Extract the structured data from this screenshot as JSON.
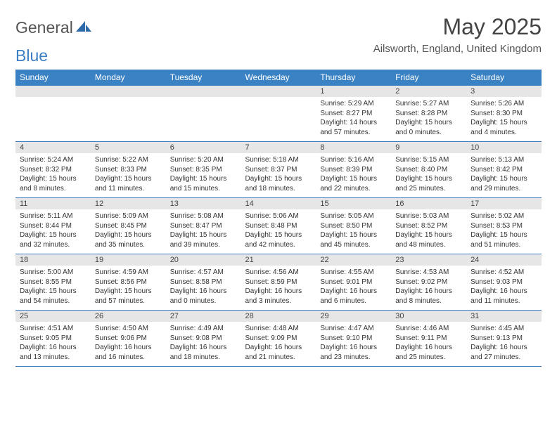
{
  "logo": {
    "text1": "General",
    "text2": "Blue"
  },
  "title": "May 2025",
  "location": "Ailsworth, England, United Kingdom",
  "colors": {
    "header_bg": "#3b82c4",
    "daynum_bg": "#e6e6e6",
    "border": "#3b7fc4",
    "text": "#333333"
  },
  "dayNames": [
    "Sunday",
    "Monday",
    "Tuesday",
    "Wednesday",
    "Thursday",
    "Friday",
    "Saturday"
  ],
  "weeks": [
    [
      {
        "n": "",
        "sunrise": "",
        "sunset": "",
        "daylight": ""
      },
      {
        "n": "",
        "sunrise": "",
        "sunset": "",
        "daylight": ""
      },
      {
        "n": "",
        "sunrise": "",
        "sunset": "",
        "daylight": ""
      },
      {
        "n": "",
        "sunrise": "",
        "sunset": "",
        "daylight": ""
      },
      {
        "n": "1",
        "sunrise": "Sunrise: 5:29 AM",
        "sunset": "Sunset: 8:27 PM",
        "daylight": "Daylight: 14 hours and 57 minutes."
      },
      {
        "n": "2",
        "sunrise": "Sunrise: 5:27 AM",
        "sunset": "Sunset: 8:28 PM",
        "daylight": "Daylight: 15 hours and 0 minutes."
      },
      {
        "n": "3",
        "sunrise": "Sunrise: 5:26 AM",
        "sunset": "Sunset: 8:30 PM",
        "daylight": "Daylight: 15 hours and 4 minutes."
      }
    ],
    [
      {
        "n": "4",
        "sunrise": "Sunrise: 5:24 AM",
        "sunset": "Sunset: 8:32 PM",
        "daylight": "Daylight: 15 hours and 8 minutes."
      },
      {
        "n": "5",
        "sunrise": "Sunrise: 5:22 AM",
        "sunset": "Sunset: 8:33 PM",
        "daylight": "Daylight: 15 hours and 11 minutes."
      },
      {
        "n": "6",
        "sunrise": "Sunrise: 5:20 AM",
        "sunset": "Sunset: 8:35 PM",
        "daylight": "Daylight: 15 hours and 15 minutes."
      },
      {
        "n": "7",
        "sunrise": "Sunrise: 5:18 AM",
        "sunset": "Sunset: 8:37 PM",
        "daylight": "Daylight: 15 hours and 18 minutes."
      },
      {
        "n": "8",
        "sunrise": "Sunrise: 5:16 AM",
        "sunset": "Sunset: 8:39 PM",
        "daylight": "Daylight: 15 hours and 22 minutes."
      },
      {
        "n": "9",
        "sunrise": "Sunrise: 5:15 AM",
        "sunset": "Sunset: 8:40 PM",
        "daylight": "Daylight: 15 hours and 25 minutes."
      },
      {
        "n": "10",
        "sunrise": "Sunrise: 5:13 AM",
        "sunset": "Sunset: 8:42 PM",
        "daylight": "Daylight: 15 hours and 29 minutes."
      }
    ],
    [
      {
        "n": "11",
        "sunrise": "Sunrise: 5:11 AM",
        "sunset": "Sunset: 8:44 PM",
        "daylight": "Daylight: 15 hours and 32 minutes."
      },
      {
        "n": "12",
        "sunrise": "Sunrise: 5:09 AM",
        "sunset": "Sunset: 8:45 PM",
        "daylight": "Daylight: 15 hours and 35 minutes."
      },
      {
        "n": "13",
        "sunrise": "Sunrise: 5:08 AM",
        "sunset": "Sunset: 8:47 PM",
        "daylight": "Daylight: 15 hours and 39 minutes."
      },
      {
        "n": "14",
        "sunrise": "Sunrise: 5:06 AM",
        "sunset": "Sunset: 8:48 PM",
        "daylight": "Daylight: 15 hours and 42 minutes."
      },
      {
        "n": "15",
        "sunrise": "Sunrise: 5:05 AM",
        "sunset": "Sunset: 8:50 PM",
        "daylight": "Daylight: 15 hours and 45 minutes."
      },
      {
        "n": "16",
        "sunrise": "Sunrise: 5:03 AM",
        "sunset": "Sunset: 8:52 PM",
        "daylight": "Daylight: 15 hours and 48 minutes."
      },
      {
        "n": "17",
        "sunrise": "Sunrise: 5:02 AM",
        "sunset": "Sunset: 8:53 PM",
        "daylight": "Daylight: 15 hours and 51 minutes."
      }
    ],
    [
      {
        "n": "18",
        "sunrise": "Sunrise: 5:00 AM",
        "sunset": "Sunset: 8:55 PM",
        "daylight": "Daylight: 15 hours and 54 minutes."
      },
      {
        "n": "19",
        "sunrise": "Sunrise: 4:59 AM",
        "sunset": "Sunset: 8:56 PM",
        "daylight": "Daylight: 15 hours and 57 minutes."
      },
      {
        "n": "20",
        "sunrise": "Sunrise: 4:57 AM",
        "sunset": "Sunset: 8:58 PM",
        "daylight": "Daylight: 16 hours and 0 minutes."
      },
      {
        "n": "21",
        "sunrise": "Sunrise: 4:56 AM",
        "sunset": "Sunset: 8:59 PM",
        "daylight": "Daylight: 16 hours and 3 minutes."
      },
      {
        "n": "22",
        "sunrise": "Sunrise: 4:55 AM",
        "sunset": "Sunset: 9:01 PM",
        "daylight": "Daylight: 16 hours and 6 minutes."
      },
      {
        "n": "23",
        "sunrise": "Sunrise: 4:53 AM",
        "sunset": "Sunset: 9:02 PM",
        "daylight": "Daylight: 16 hours and 8 minutes."
      },
      {
        "n": "24",
        "sunrise": "Sunrise: 4:52 AM",
        "sunset": "Sunset: 9:03 PM",
        "daylight": "Daylight: 16 hours and 11 minutes."
      }
    ],
    [
      {
        "n": "25",
        "sunrise": "Sunrise: 4:51 AM",
        "sunset": "Sunset: 9:05 PM",
        "daylight": "Daylight: 16 hours and 13 minutes."
      },
      {
        "n": "26",
        "sunrise": "Sunrise: 4:50 AM",
        "sunset": "Sunset: 9:06 PM",
        "daylight": "Daylight: 16 hours and 16 minutes."
      },
      {
        "n": "27",
        "sunrise": "Sunrise: 4:49 AM",
        "sunset": "Sunset: 9:08 PM",
        "daylight": "Daylight: 16 hours and 18 minutes."
      },
      {
        "n": "28",
        "sunrise": "Sunrise: 4:48 AM",
        "sunset": "Sunset: 9:09 PM",
        "daylight": "Daylight: 16 hours and 21 minutes."
      },
      {
        "n": "29",
        "sunrise": "Sunrise: 4:47 AM",
        "sunset": "Sunset: 9:10 PM",
        "daylight": "Daylight: 16 hours and 23 minutes."
      },
      {
        "n": "30",
        "sunrise": "Sunrise: 4:46 AM",
        "sunset": "Sunset: 9:11 PM",
        "daylight": "Daylight: 16 hours and 25 minutes."
      },
      {
        "n": "31",
        "sunrise": "Sunrise: 4:45 AM",
        "sunset": "Sunset: 9:13 PM",
        "daylight": "Daylight: 16 hours and 27 minutes."
      }
    ]
  ]
}
